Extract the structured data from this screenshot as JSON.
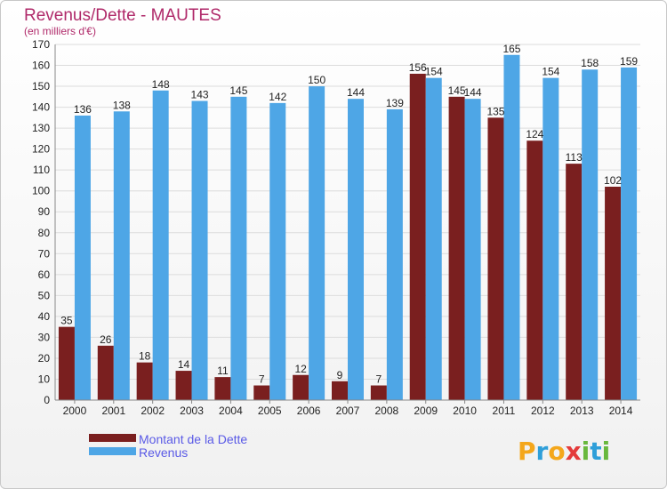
{
  "chart_data": {
    "type": "bar",
    "title": "Revenus/Dette - MAUTES",
    "subtitle": "(en milliers d'€)",
    "categories": [
      "2000",
      "2001",
      "2002",
      "2003",
      "2004",
      "2005",
      "2006",
      "2007",
      "2008",
      "2009",
      "2010",
      "2011",
      "2012",
      "2013",
      "2014"
    ],
    "series": [
      {
        "name": "Montant de la Dette",
        "values": [
          35,
          26,
          18,
          14,
          11,
          7,
          12,
          9,
          7,
          156,
          145,
          135,
          124,
          113,
          102
        ],
        "color": "#7a1f1f"
      },
      {
        "name": "Revenus",
        "values": [
          136,
          138,
          148,
          143,
          145,
          142,
          150,
          144,
          139,
          154,
          144,
          165,
          154,
          158,
          159
        ],
        "color": "#4ea6e6"
      }
    ],
    "ylim": [
      0,
      170
    ],
    "yticks": [
      0,
      10,
      20,
      30,
      40,
      50,
      60,
      70,
      80,
      90,
      100,
      110,
      120,
      130,
      140,
      150,
      160,
      170
    ],
    "grid": true,
    "legend_position": "bottom-left"
  },
  "logo": {
    "text": "Proxiti",
    "letters": [
      {
        "ch": "P",
        "color": "#f4a71c"
      },
      {
        "ch": "r",
        "color": "#2f9fd9"
      },
      {
        "ch": "o",
        "color": "#f4a71c"
      },
      {
        "ch": "x",
        "color": "#e43b3b"
      },
      {
        "ch": "i",
        "color": "#69b83d"
      },
      {
        "ch": "t",
        "color": "#2f9fd9"
      },
      {
        "ch": "i",
        "color": "#69b83d"
      }
    ]
  }
}
